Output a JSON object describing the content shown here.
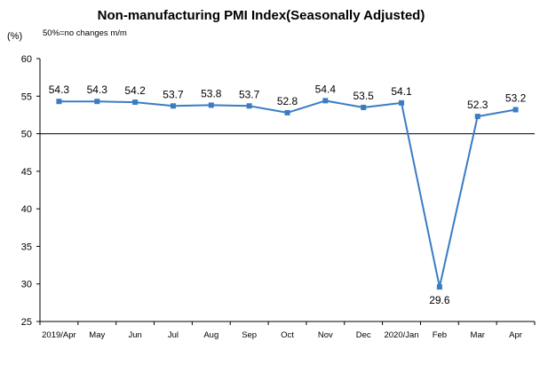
{
  "chart_data": {
    "type": "line",
    "title": "Non-manufacturing PMI Index(Seasonally Adjusted)",
    "subtitle": "50%=no changes  m/m",
    "ylabel": "(%)",
    "xlabel": "",
    "ylim": [
      25,
      60
    ],
    "yticks": [
      "60",
      "55",
      "50",
      "45",
      "40",
      "35",
      "30",
      "25"
    ],
    "reference_line": 50,
    "grid": false,
    "line_color": "#3a7cc3",
    "categories": [
      "2019/Apr",
      "May",
      "Jun",
      "Jul",
      "Aug",
      "Sep",
      "Oct",
      "Nov",
      "Dec",
      "2020/Jan",
      "Feb",
      "Mar",
      "Apr"
    ],
    "values": [
      54.3,
      54.3,
      54.2,
      53.7,
      53.8,
      53.7,
      52.8,
      54.4,
      53.5,
      54.1,
      29.6,
      52.3,
      53.2
    ],
    "data_labels": [
      "54.3",
      "54.3",
      "54.2",
      "53.7",
      "53.8",
      "53.7",
      "52.8",
      "54.4",
      "53.5",
      "54.1",
      "29.6",
      "52.3",
      "53.2"
    ]
  }
}
